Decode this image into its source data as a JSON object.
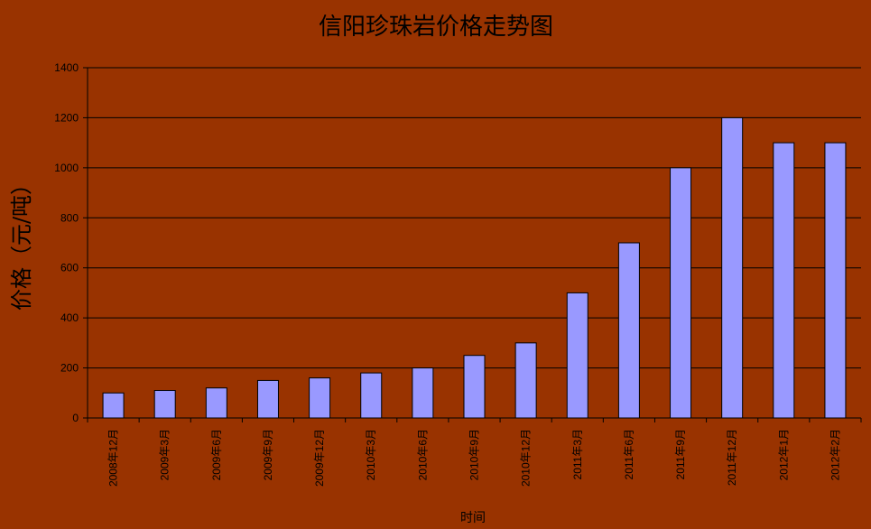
{
  "chart_data": {
    "type": "bar",
    "title": "信阳珍珠岩价格走势图",
    "xlabel": "时间",
    "ylabel": "价格（元/吨）",
    "ylim": [
      0,
      1400
    ],
    "yticks": [
      0,
      200,
      400,
      600,
      800,
      1000,
      1200,
      1400
    ],
    "grid": true,
    "categories": [
      "2008年12月",
      "2009年3月",
      "2009年6月",
      "2009年9月",
      "2009年12月",
      "2010年3月",
      "2010年6月",
      "2010年9月",
      "2010年12月",
      "2011年3月",
      "2011年6月",
      "2011年9月",
      "2011年12月",
      "2012年1月",
      "2012年2月"
    ],
    "values": [
      100,
      110,
      120,
      150,
      160,
      180,
      200,
      250,
      300,
      500,
      700,
      1000,
      1200,
      1100,
      1100
    ],
    "colors": {
      "background": "#993300",
      "bar": "#9999FF",
      "axis": "#000000"
    }
  }
}
